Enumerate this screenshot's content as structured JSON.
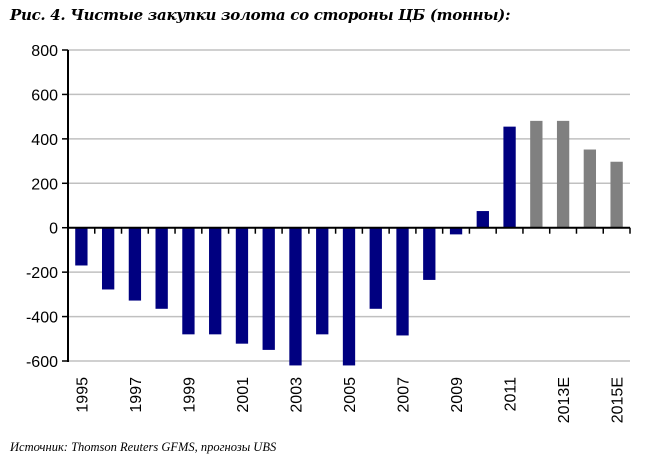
{
  "chart_data": {
    "type": "bar",
    "title": "Рис. 4. Чистые закупки золота со стороны ЦБ (тонны):",
    "source": "Источник: Thomson Reuters GFMS, прогнозы UBS",
    "xlabel": "",
    "ylabel": "",
    "ylim": [
      -600,
      800
    ],
    "yticks": [
      "800",
      "600",
      "400",
      "200",
      "0",
      "-200",
      "-400",
      "-600"
    ],
    "ytick_values": [
      800,
      600,
      400,
      200,
      0,
      -200,
      -400,
      -600
    ],
    "grid": true,
    "categories": [
      "1995",
      "1996",
      "1997",
      "1998",
      "1999",
      "2000",
      "2001",
      "2002",
      "2003",
      "2004",
      "2005",
      "2006",
      "2007",
      "2008",
      "2009",
      "2010",
      "2011",
      "2012E",
      "2013E",
      "2014E",
      "2015E"
    ],
    "xtick_labels": [
      "1995",
      "",
      "1997",
      "",
      "1999",
      "",
      "2001",
      "",
      "2003",
      "",
      "2005",
      "",
      "2007",
      "",
      "2009",
      "",
      "2011",
      "",
      "2013E",
      "",
      "2015E"
    ],
    "values": [
      -170,
      -278,
      -328,
      -365,
      -480,
      -480,
      -522,
      -550,
      -620,
      -480,
      -620,
      -365,
      -485,
      -235,
      -30,
      75,
      455,
      481,
      481,
      352,
      297
    ],
    "forecast": [
      false,
      false,
      false,
      false,
      false,
      false,
      false,
      false,
      false,
      false,
      false,
      false,
      false,
      false,
      false,
      false,
      false,
      true,
      true,
      true,
      true
    ],
    "colors": {
      "actual": "#000080",
      "forecast": "#808080",
      "grid": "#c0c0c0",
      "axis": "#000000"
    }
  }
}
